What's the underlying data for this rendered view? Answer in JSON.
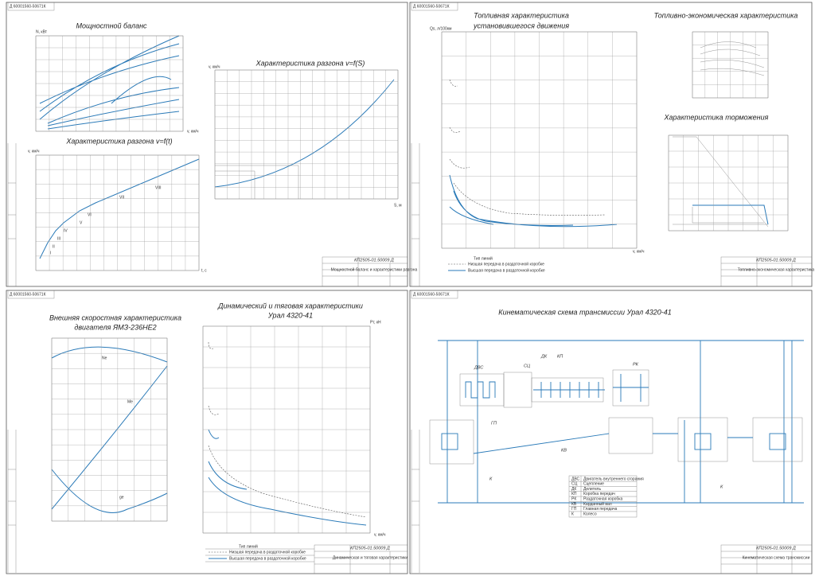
{
  "sheets": [
    {
      "code": "Д 60001560-50671К",
      "document": "КП2505-01.50009 Д",
      "caption": "Мощностной баланс и характеристики разгона",
      "power_title": "Мощностной баланс",
      "accel_t_title": "Характеристика разгона v=f(t)",
      "accel_s_title": "Характеристика разгона v=f(S)",
      "power_y": "N, кВт",
      "speed_x": "v, км/ч",
      "accel_t_y": "v, км/ч",
      "accel_t_x": "t, с",
      "accel_s_y": "v, км/ч",
      "accel_s_x": "S, м",
      "gear_labels": [
        "I",
        "II",
        "III",
        "IV",
        "V",
        "VI",
        "VII",
        "VIII"
      ]
    },
    {
      "code": "Д 60001560-50671К",
      "document": "КП2505-01.50009 Д",
      "caption": "Топливно-экономическая характеристика",
      "fuel_title": [
        "Топливная характеристика",
        "установившегося движения"
      ],
      "econ_title": "Топливно-экономическая характеристика",
      "brake_title": "Характеристика торможения",
      "fuel_y": "Qs, л/100км",
      "fuel_x": "v, км/ч",
      "legend_title": "Тип линий",
      "legend": [
        "Низшая передача в раздаточной коробке",
        "Высшая передача в раздаточной коробке"
      ]
    },
    {
      "code": "Д 60001560-50671К",
      "document": "КП2505-01.50009 Д",
      "caption": "Динамическая и тяговая характеристики",
      "engine_title": [
        "Внешняя скоростная характеристика",
        "двигателя ЯМЗ-236НЕ2"
      ],
      "dynamic_title": [
        "Динамический и тяговая характеристики",
        "Урал 4320-41"
      ],
      "dynamic_y": "Pт, кН",
      "dynamic_x": "v, км/ч",
      "engine_labels": [
        "Ne",
        "Me",
        "ge"
      ],
      "legend_title": "Тип линий",
      "legend": [
        "Низшая передача в раздаточной коробке",
        "Высшая передача в раздаточной коробке"
      ]
    },
    {
      "code": "Д 60001560-50671К",
      "document": "КП2505-01.50009 Д",
      "caption": "Кинематическая схема трансмиссии",
      "title": "Кинематическая схема трансмиссии Урал 4320-41",
      "labels": [
        "ДВС",
        "СЦ",
        "ДК",
        "КП",
        "РК",
        "ГП",
        "КВ",
        "К",
        "К"
      ],
      "table": [
        [
          "ДВС",
          "Двигатель внутреннего сгорания"
        ],
        [
          "СЦ",
          "Сцепление"
        ],
        [
          "ДК",
          "Делитель"
        ],
        [
          "КП",
          "Коробка передач"
        ],
        [
          "РК",
          "Раздаточная коробка"
        ],
        [
          "КВ",
          "Карданный вал"
        ],
        [
          "ГП",
          "Главная передача"
        ],
        [
          "К",
          "Колесо"
        ]
      ]
    }
  ]
}
